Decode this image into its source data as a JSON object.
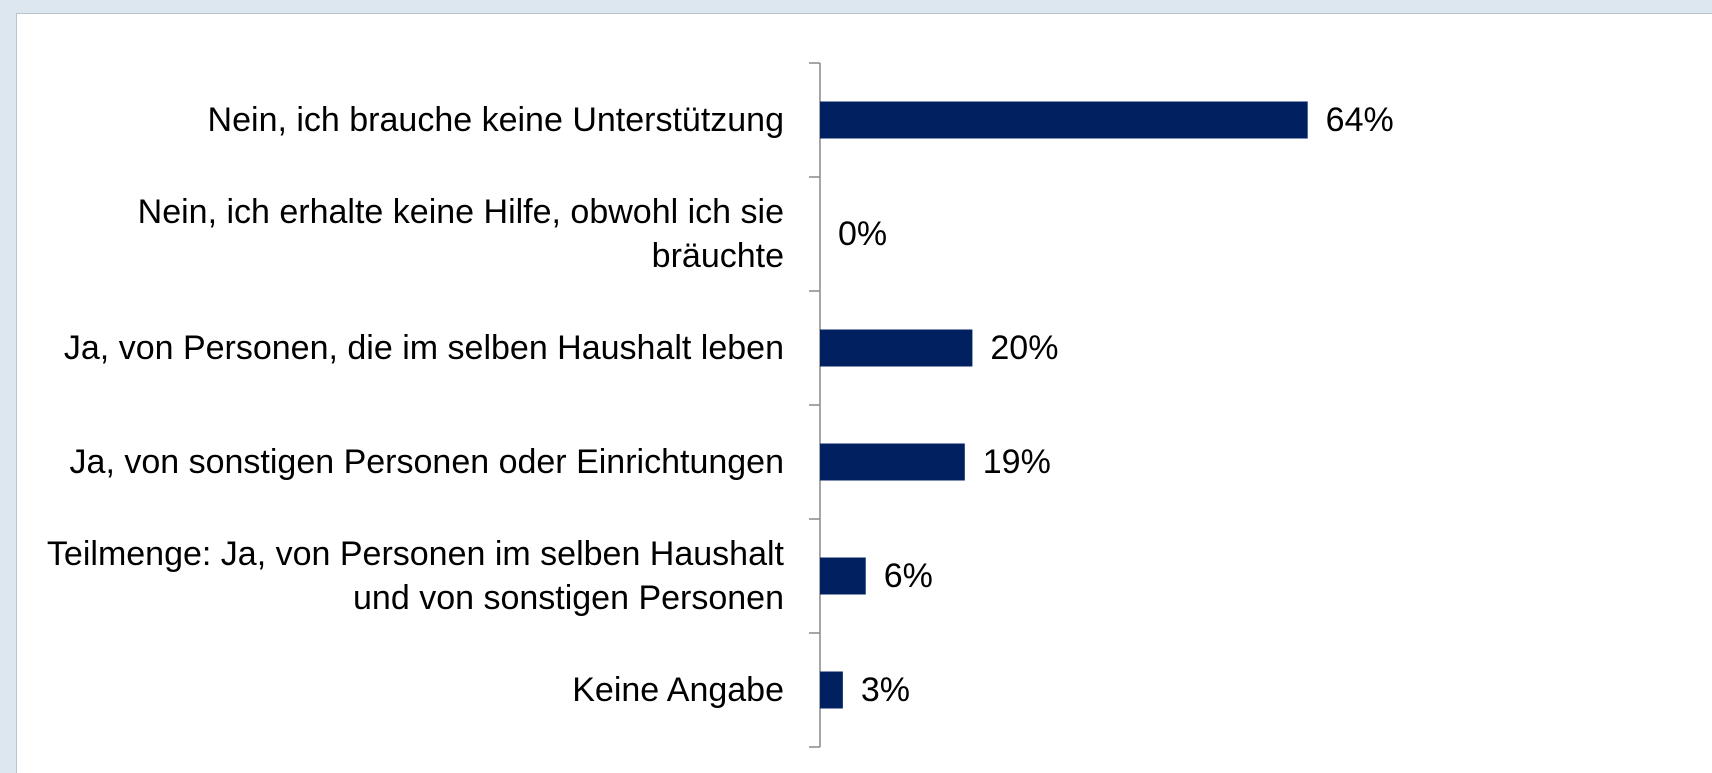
{
  "chart_data": {
    "type": "bar",
    "orientation": "horizontal",
    "categories": [
      "Nein, ich brauche keine Unterstützung",
      "Nein, ich erhalte keine Hilfe, obwohl ich sie bräuchte",
      "Ja, von Personen, die im selben Haushalt leben",
      "Ja, von sonstigen Personen oder Einrichtungen",
      "Teilmenge: Ja, von Personen im selben Haushalt und von sonstigen Personen",
      "Keine Angabe"
    ],
    "values": [
      64,
      0,
      20,
      19,
      6,
      3
    ],
    "value_labels": [
      "64%",
      "0%",
      "20%",
      "19%",
      "6%",
      "3%"
    ],
    "color": "#002060",
    "xlim": [
      0,
      100
    ]
  }
}
